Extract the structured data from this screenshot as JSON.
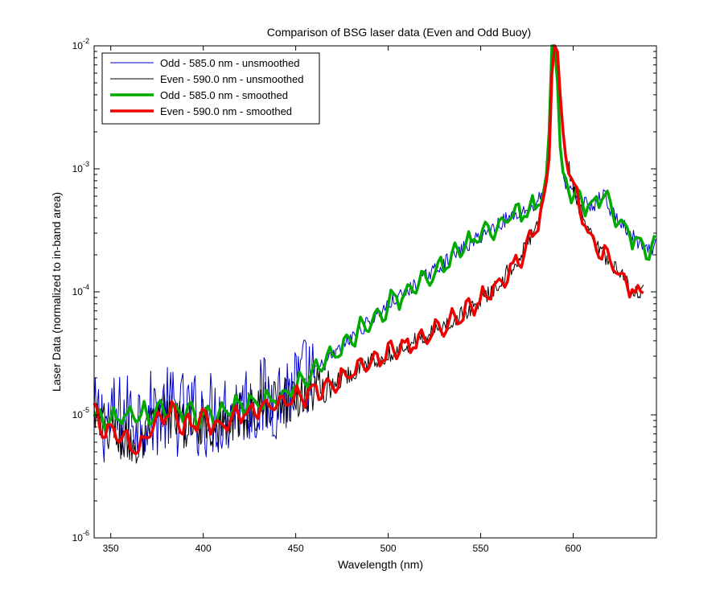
{
  "chart_data": {
    "type": "line",
    "title": "Comparison of BSG laser data (Even and Odd Buoy)",
    "xlabel": "Wavelength (nm)",
    "ylabel": "Laser Data (normalized to in-band area)",
    "xlim": [
      341,
      645
    ],
    "ylim_log10": [
      -6,
      -2
    ],
    "yscale": "log",
    "grid": false,
    "legend_position": "top-left",
    "x_ticks": [
      350,
      400,
      450,
      500,
      550,
      600
    ],
    "y_ticks": [
      {
        "value": 0.01,
        "base": "10",
        "exp": "-2"
      },
      {
        "value": 0.001,
        "base": "10",
        "exp": "-3"
      },
      {
        "value": 0.0001,
        "base": "10",
        "exp": "-4"
      },
      {
        "value": 1e-05,
        "base": "10",
        "exp": "-5"
      },
      {
        "value": 1e-06,
        "base": "10",
        "exp": "-6"
      }
    ],
    "series": [
      {
        "name": "Odd - 585.0 nm - unsmoothed",
        "color": "#0000cc",
        "width": 1,
        "noise": "heavy_until_460",
        "x": [
          341,
          350,
          360,
          370,
          380,
          390,
          400,
          410,
          420,
          430,
          440,
          450,
          460,
          470,
          480,
          490,
          500,
          510,
          520,
          530,
          540,
          550,
          560,
          570,
          575,
          580,
          584,
          586,
          587,
          588,
          589,
          590,
          591,
          592,
          593,
          595,
          600,
          610,
          617,
          620,
          630,
          640,
          645
        ],
        "y": [
          9e-06,
          9e-06,
          1e-05,
          1e-05,
          1.1e-05,
          1e-05,
          1e-05,
          1.05e-05,
          1.2e-05,
          1.3e-05,
          1.4e-05,
          1.7e-05,
          2.2e-05,
          3e-05,
          4.2e-05,
          5.8e-05,
          7.8e-05,
          0.0001,
          0.000132,
          0.00017,
          0.00022,
          0.000285,
          0.00036,
          0.00044,
          0.00047,
          0.00052,
          0.00065,
          0.001,
          0.002,
          0.01,
          0.01,
          0.01,
          0.01,
          0.0025,
          0.0015,
          0.0008,
          0.00063,
          0.00049,
          0.00063,
          0.00046,
          0.000305,
          0.00021,
          0.00024
        ]
      },
      {
        "name": "Even - 590.0 nm - unsmoothed",
        "color": "#000000",
        "width": 1,
        "noise": "moderate",
        "x": [
          341,
          350,
          360,
          365,
          370,
          380,
          390,
          400,
          410,
          420,
          430,
          440,
          450,
          460,
          470,
          480,
          490,
          500,
          510,
          520,
          530,
          540,
          550,
          560,
          570,
          580,
          585,
          587,
          588,
          589,
          590,
          591,
          592,
          593,
          595,
          600,
          605,
          610,
          620,
          630,
          636,
          638
        ],
        "y": [
          1e-05,
          7e-06,
          6e-06,
          5e-06,
          7e-06,
          1.1e-05,
          8e-06,
          9e-06,
          8e-06,
          1e-05,
          1.1e-05,
          1.3e-05,
          1.4e-05,
          1.6e-05,
          1.8e-05,
          2.2e-05,
          2.7e-05,
          3.1e-05,
          3.7e-05,
          4.3e-05,
          5.2e-05,
          6.5e-05,
          8.5e-05,
          0.00012,
          0.00018,
          0.00032,
          0.00068,
          0.0012,
          0.0035,
          0.01,
          0.01,
          0.01,
          0.008,
          0.004,
          0.0016,
          0.0007,
          0.00041,
          0.00027,
          0.00017,
          0.000115,
          9e-05,
          0.00011
        ]
      },
      {
        "name": "Odd - 585.0 nm - smoothed",
        "color": "#00aa00",
        "width": 3.5,
        "noise": "light",
        "x": [
          341,
          350,
          360,
          370,
          380,
          390,
          400,
          410,
          420,
          430,
          440,
          450,
          460,
          470,
          480,
          490,
          500,
          510,
          520,
          530,
          540,
          550,
          560,
          570,
          575,
          580,
          584,
          586,
          587,
          588,
          589,
          590,
          591,
          592,
          593,
          595,
          600,
          610,
          617,
          620,
          630,
          640,
          645
        ],
        "y": [
          9e-06,
          9e-06,
          1e-05,
          1e-05,
          1.1e-05,
          1e-05,
          1e-05,
          1.05e-05,
          1.2e-05,
          1.3e-05,
          1.4e-05,
          1.7e-05,
          2.2e-05,
          3e-05,
          4.2e-05,
          5.8e-05,
          7.8e-05,
          0.0001,
          0.000132,
          0.00017,
          0.00022,
          0.000285,
          0.00036,
          0.00044,
          0.00047,
          0.00052,
          0.00065,
          0.001,
          0.002,
          0.01,
          0.01,
          0.01,
          0.01,
          0.0025,
          0.0015,
          0.0008,
          0.00063,
          0.00049,
          0.00063,
          0.00046,
          0.000305,
          0.00021,
          0.00024
        ]
      },
      {
        "name": "Even - 590.0 nm - smoothed",
        "color": "#ee0000",
        "width": 3.5,
        "noise": "light",
        "x": [
          341,
          350,
          360,
          365,
          370,
          380,
          390,
          400,
          410,
          420,
          430,
          440,
          450,
          460,
          470,
          480,
          490,
          500,
          510,
          520,
          530,
          540,
          550,
          560,
          570,
          580,
          585,
          587,
          588,
          589,
          590,
          591,
          592,
          593,
          595,
          600,
          605,
          610,
          620,
          630,
          636,
          638
        ],
        "y": [
          1e-05,
          7e-06,
          6e-06,
          5e-06,
          7e-06,
          1.1e-05,
          8e-06,
          9e-06,
          8e-06,
          1e-05,
          1.1e-05,
          1.3e-05,
          1.4e-05,
          1.6e-05,
          1.8e-05,
          2.2e-05,
          2.7e-05,
          3.1e-05,
          3.7e-05,
          4.3e-05,
          5.2e-05,
          6.5e-05,
          8.5e-05,
          0.00012,
          0.00018,
          0.00032,
          0.00068,
          0.0012,
          0.0035,
          0.01,
          0.01,
          0.01,
          0.008,
          0.004,
          0.0016,
          0.0007,
          0.00041,
          0.00027,
          0.00017,
          0.000115,
          9e-05,
          0.00011
        ]
      }
    ]
  }
}
